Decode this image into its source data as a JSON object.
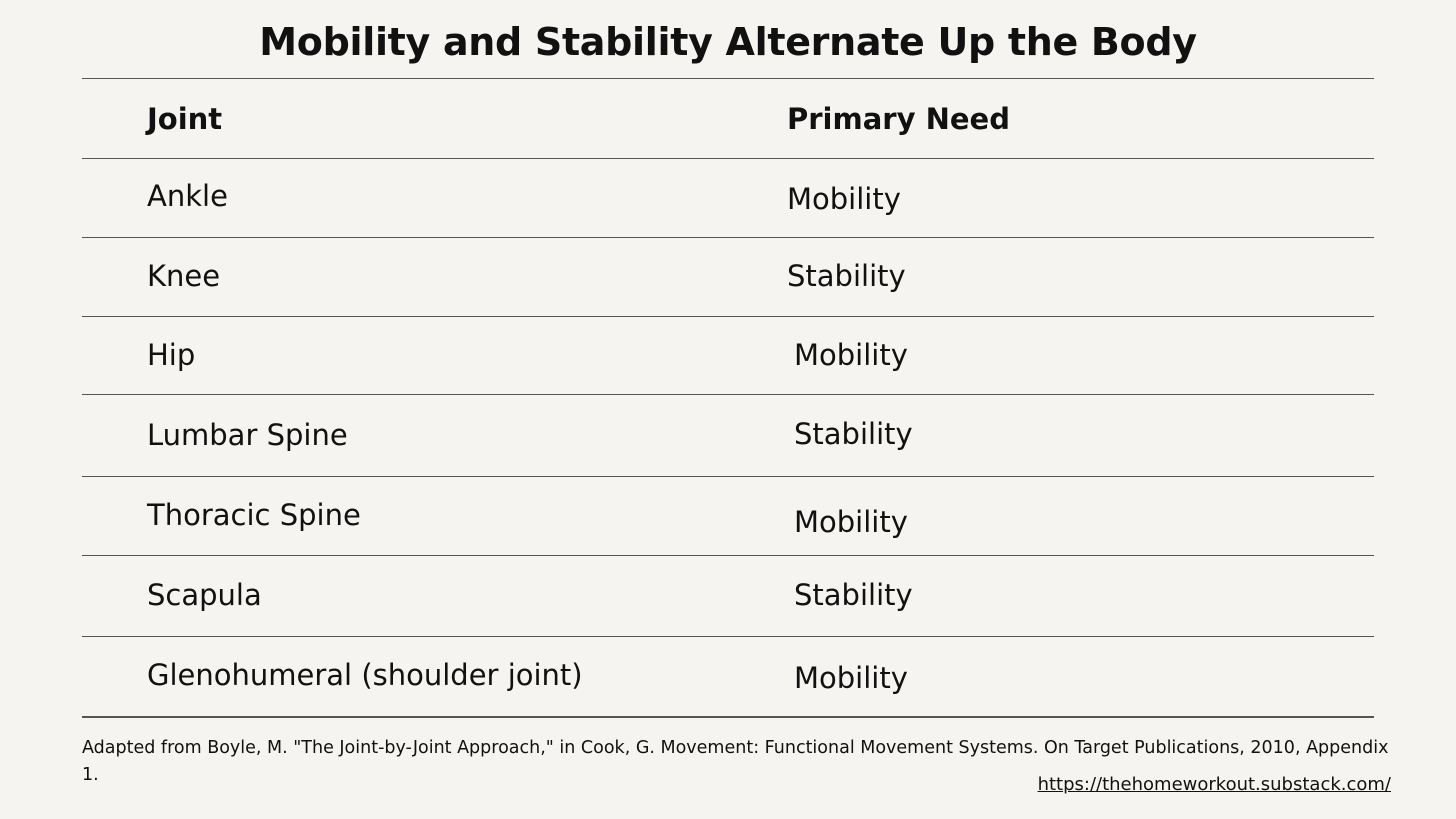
{
  "title": "Mobility and Stability Alternate Up the Body",
  "table": {
    "headers": [
      "Joint",
      "Primary Need"
    ],
    "rows": [
      {
        "joint": "Ankle",
        "need": "Mobility"
      },
      {
        "joint": "Knee",
        "need": "Stability"
      },
      {
        "joint": "Hip",
        "need": "Mobility"
      },
      {
        "joint": "Lumbar Spine",
        "need": "Stability"
      },
      {
        "joint": "Thoracic Spine",
        "need": "Mobility"
      },
      {
        "joint": "Scapula",
        "need": "Stability"
      },
      {
        "joint": "Glenohumeral (shoulder joint)",
        "need": "Mobility"
      }
    ]
  },
  "footer": {
    "citation": "Adapted from Boyle, M. \"The Joint-by-Joint Approach,\" in Cook, G. Movement: Functional Movement Systems. On Target Publications, 2010, Appendix 1.",
    "link": "https://thehomeworkout.substack.com/"
  }
}
